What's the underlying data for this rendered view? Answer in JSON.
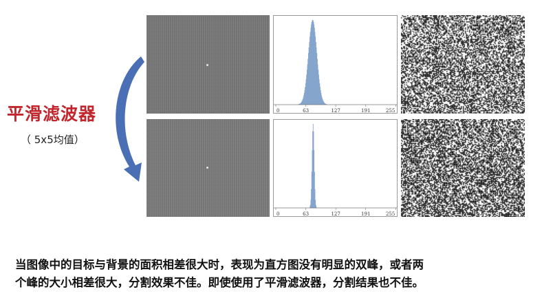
{
  "title": "平滑滤波器",
  "subtitle": "（ 5x5均值）",
  "caption": {
    "line1": "当图像中的目标与背景的面积相差很大时，表现为直方图没有明显的双峰，或者两",
    "line2": "个峰的大小相差很大，分割效果不佳。即使使用了平滑滤波器，分割结果也不佳。"
  },
  "colors": {
    "title": "#c0262c",
    "arrow": "#4a6fb5",
    "hist_bar": "#8fb0d6"
  },
  "chart_data": [
    {
      "type": "bar",
      "xlim": [
        0,
        255
      ],
      "xticks": [
        "0",
        "63",
        "127",
        "191",
        "255"
      ],
      "distribution": {
        "mean": 78,
        "std": 9
      }
    },
    {
      "type": "bar",
      "xlim": [
        0,
        255
      ],
      "xticks": [
        "0",
        "63",
        "127",
        "191",
        "255"
      ],
      "distribution": {
        "mean": 79,
        "std": 2.3
      }
    }
  ]
}
